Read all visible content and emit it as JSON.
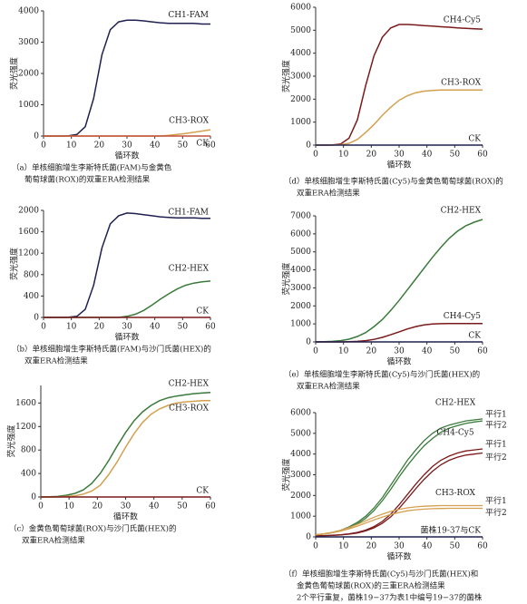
{
  "chart_data": [
    {
      "type": "line",
      "x_label": "循环数",
      "y_label": "荧光强度",
      "caption": [
        "（a）单核细胞增生李斯特氏菌(FAM)与金黄色",
        "葡萄球菌(ROX)的双重ERA检测结果"
      ],
      "xlim": [
        0,
        60
      ],
      "xticks": [
        0,
        10,
        20,
        30,
        40,
        50,
        60
      ],
      "ylim": [
        0,
        4000
      ],
      "yticks": [
        0,
        1000,
        2000,
        3000,
        4000
      ],
      "x": [
        0,
        3,
        6,
        9,
        12,
        15,
        18,
        21,
        24,
        27,
        30,
        33,
        36,
        39,
        42,
        45,
        48,
        51,
        54,
        57,
        60
      ],
      "series": [
        {
          "name": "CH1-FAM",
          "color": "#1f2050",
          "values": [
            0,
            0,
            0,
            10,
            50,
            300,
            1200,
            2600,
            3400,
            3650,
            3700,
            3700,
            3680,
            3650,
            3620,
            3600,
            3600,
            3600,
            3600,
            3580,
            3580
          ]
        },
        {
          "name": "CH3-ROX",
          "color": "#d4a050",
          "values": [
            0,
            0,
            0,
            0,
            0,
            0,
            0,
            0,
            0,
            0,
            0,
            0,
            0,
            0,
            0,
            20,
            50,
            80,
            120,
            160,
            200
          ]
        },
        {
          "name": "CK",
          "color": "#c0503a",
          "values": [
            0,
            0,
            0,
            0,
            0,
            0,
            0,
            0,
            0,
            0,
            0,
            0,
            0,
            0,
            0,
            0,
            0,
            0,
            0,
            0,
            0
          ]
        }
      ]
    },
    {
      "type": "line",
      "x_label": "循环数",
      "y_label": "荧光强度",
      "caption": [
        "（b）单核细胞增生李斯特氏菌(FAM)与沙门氏菌(HEX)的",
        "双重ERA检测结果"
      ],
      "xlim": [
        0,
        60
      ],
      "xticks": [
        0,
        10,
        20,
        30,
        40,
        50,
        60
      ],
      "ylim": [
        0,
        2000
      ],
      "yticks": [
        0,
        400,
        800,
        1200,
        1600,
        2000
      ],
      "x": [
        0,
        3,
        6,
        9,
        12,
        15,
        18,
        21,
        24,
        27,
        30,
        33,
        36,
        39,
        42,
        45,
        48,
        51,
        54,
        57,
        60
      ],
      "series": [
        {
          "name": "CH1-FAM",
          "color": "#1f2050",
          "values": [
            0,
            0,
            0,
            5,
            20,
            150,
            600,
            1300,
            1750,
            1900,
            1950,
            1940,
            1920,
            1900,
            1880,
            1870,
            1860,
            1860,
            1860,
            1850,
            1850
          ]
        },
        {
          "name": "CH2-HEX",
          "color": "#3a7a3a",
          "values": [
            0,
            0,
            0,
            0,
            0,
            0,
            0,
            0,
            0,
            0,
            20,
            60,
            130,
            230,
            340,
            440,
            530,
            600,
            640,
            665,
            680
          ]
        },
        {
          "name": "CK",
          "color": "#7a1a1a",
          "values": [
            0,
            0,
            0,
            0,
            0,
            0,
            0,
            0,
            0,
            0,
            0,
            0,
            0,
            0,
            0,
            0,
            0,
            0,
            0,
            0,
            0
          ]
        }
      ]
    },
    {
      "type": "line",
      "x_label": "循环数",
      "y_label": "荧光强度",
      "caption": [
        "（c）金黄色葡萄球菌(ROX)与沙门氏菌(HEX)的",
        "双重ERA检测结果"
      ],
      "xlim": [
        0,
        60
      ],
      "xticks": [
        0,
        10,
        20,
        30,
        40,
        50,
        60
      ],
      "ylim": [
        0,
        1900
      ],
      "yticks": [
        0,
        400,
        800,
        1200,
        1600
      ],
      "x": [
        0,
        3,
        6,
        9,
        12,
        15,
        18,
        21,
        24,
        27,
        30,
        33,
        36,
        39,
        42,
        45,
        48,
        51,
        54,
        57,
        60
      ],
      "series": [
        {
          "name": "CH2-HEX",
          "color": "#3a7a3a",
          "values": [
            0,
            5,
            10,
            30,
            60,
            120,
            230,
            400,
            620,
            870,
            1100,
            1300,
            1450,
            1560,
            1640,
            1690,
            1720,
            1740,
            1760,
            1770,
            1780
          ]
        },
        {
          "name": "CH3-ROX",
          "color": "#d4a050",
          "values": [
            0,
            0,
            0,
            10,
            20,
            50,
            100,
            200,
            380,
            600,
            850,
            1080,
            1270,
            1410,
            1500,
            1560,
            1600,
            1620,
            1630,
            1640,
            1640
          ]
        },
        {
          "name": "CK",
          "color": "#7a1a1a",
          "values": [
            0,
            0,
            0,
            0,
            0,
            0,
            0,
            0,
            0,
            0,
            0,
            0,
            0,
            0,
            0,
            0,
            0,
            0,
            0,
            0,
            0
          ]
        }
      ]
    },
    {
      "type": "line",
      "x_label": "循环数",
      "y_label": "荧光强度",
      "caption": [
        "（d）单核细胞增生李斯特氏菌(Cy5)与金黄色葡萄球菌(ROX)的",
        "双重ERA检测结果"
      ],
      "xlim": [
        0,
        60
      ],
      "xticks": [
        0,
        10,
        20,
        30,
        40,
        50,
        60
      ],
      "ylim": [
        0,
        6000
      ],
      "yticks": [
        0,
        1000,
        2000,
        3000,
        4000,
        5000,
        6000
      ],
      "x": [
        0,
        3,
        6,
        9,
        12,
        15,
        18,
        21,
        24,
        27,
        30,
        33,
        36,
        39,
        42,
        45,
        48,
        51,
        54,
        57,
        60
      ],
      "series": [
        {
          "name": "CH4-Cy5",
          "color": "#7a1a1a",
          "values": [
            0,
            0,
            5,
            50,
            300,
            1100,
            2600,
            3900,
            4700,
            5100,
            5250,
            5250,
            5230,
            5200,
            5180,
            5150,
            5130,
            5100,
            5080,
            5060,
            5050
          ]
        },
        {
          "name": "CH3-ROX",
          "color": "#d4a050",
          "values": [
            0,
            0,
            0,
            20,
            80,
            250,
            550,
            900,
            1300,
            1650,
            1950,
            2150,
            2280,
            2350,
            2380,
            2400,
            2400,
            2400,
            2400,
            2400,
            2400
          ]
        },
        {
          "name": "CK",
          "color": "#1f2050",
          "values": [
            0,
            0,
            0,
            0,
            0,
            0,
            0,
            0,
            0,
            0,
            0,
            0,
            0,
            0,
            0,
            0,
            0,
            0,
            0,
            0,
            0
          ]
        }
      ]
    },
    {
      "type": "line",
      "x_label": "循环数",
      "y_label": "荧光强度",
      "caption": [
        "（e）单核细胞增生李斯特氏菌(Cy5)与沙门氏菌(HEX)的",
        "双重ERA检测结果"
      ],
      "xlim": [
        0,
        60
      ],
      "xticks": [
        0,
        10,
        20,
        30,
        40,
        50,
        60
      ],
      "ylim": [
        0,
        7000
      ],
      "yticks": [
        0,
        1000,
        2000,
        3000,
        4000,
        5000,
        6000,
        7000
      ],
      "x": [
        0,
        3,
        6,
        9,
        12,
        15,
        18,
        21,
        24,
        27,
        30,
        33,
        36,
        39,
        42,
        45,
        48,
        51,
        54,
        57,
        60
      ],
      "series": [
        {
          "name": "CH2-HEX",
          "color": "#3a7a3a",
          "values": [
            0,
            10,
            30,
            70,
            150,
            300,
            520,
            850,
            1250,
            1750,
            2300,
            2900,
            3500,
            4100,
            4700,
            5250,
            5750,
            6150,
            6450,
            6650,
            6800
          ]
        },
        {
          "name": "CH4-Cy5",
          "color": "#7a1a1a",
          "values": [
            0,
            0,
            0,
            0,
            10,
            30,
            70,
            140,
            250,
            400,
            560,
            720,
            850,
            940,
            990,
            1010,
            1020,
            1020,
            1020,
            1020,
            1020
          ]
        },
        {
          "name": "CK",
          "color": "#1f2050",
          "values": [
            0,
            0,
            0,
            0,
            0,
            0,
            0,
            0,
            0,
            0,
            0,
            0,
            0,
            0,
            0,
            0,
            0,
            0,
            0,
            0,
            0
          ]
        }
      ]
    },
    {
      "type": "line",
      "x_label": "循环数",
      "y_label": "荧光强度",
      "caption": [
        "（f）单核细胞增生李斯特氏菌(Cy5)与沙门氏菌(HEX)和",
        "金黄色葡萄球菌(ROX)的三重ERA检测结果",
        "2个平行重复，菌株19−37为表1中编号19−37的菌株"
      ],
      "xlim": [
        0,
        60
      ],
      "xticks": [
        0,
        10,
        20,
        30,
        40,
        50,
        60
      ],
      "ylim": [
        0,
        6000
      ],
      "yticks": [
        0,
        1000,
        2000,
        3000,
        4000,
        5000,
        6000
      ],
      "x": [
        0,
        3,
        6,
        9,
        12,
        15,
        18,
        21,
        24,
        27,
        30,
        33,
        36,
        39,
        42,
        45,
        48,
        51,
        54,
        57,
        60
      ],
      "series": [
        {
          "name": "CH2-HEX",
          "color": "#3a7a3a",
          "replicates": [
            {
              "label": "平行1",
              "values": [
                100,
                150,
                220,
                320,
                480,
                700,
                1000,
                1400,
                1900,
                2500,
                3100,
                3700,
                4200,
                4650,
                5000,
                5250,
                5400,
                5500,
                5600,
                5650,
                5700
              ]
            },
            {
              "label": "平行2",
              "values": [
                100,
                140,
                200,
                290,
                430,
                630,
                900,
                1280,
                1750,
                2300,
                2900,
                3450,
                3950,
                4400,
                4750,
                5050,
                5250,
                5380,
                5480,
                5550,
                5600
              ]
            }
          ]
        },
        {
          "name": "CH4-Cy5",
          "color": "#7a1a1a",
          "replicates": [
            {
              "label": "平行1",
              "values": [
                50,
                60,
                80,
                100,
                150,
                220,
                330,
                500,
                750,
                1100,
                1550,
                2050,
                2550,
                3000,
                3400,
                3700,
                3900,
                4050,
                4150,
                4200,
                4250
              ]
            },
            {
              "label": "平行2",
              "values": [
                50,
                55,
                70,
                90,
                130,
                190,
                290,
                440,
                660,
                970,
                1380,
                1850,
                2330,
                2780,
                3170,
                3480,
                3700,
                3850,
                3950,
                4000,
                4050
              ]
            }
          ]
        },
        {
          "name": "CH3-ROX",
          "color": "#d4a050",
          "replicates": [
            {
              "label": "平行1",
              "values": [
                100,
                150,
                220,
                320,
                450,
                600,
                780,
                950,
                1100,
                1230,
                1330,
                1400,
                1450,
                1480,
                1500,
                1510,
                1510,
                1510,
                1510,
                1510,
                1510
              ]
            },
            {
              "label": "平行2",
              "values": [
                100,
                140,
                200,
                280,
                390,
                520,
                670,
                820,
                960,
                1080,
                1180,
                1260,
                1310,
                1340,
                1360,
                1370,
                1380,
                1380,
                1380,
                1380,
                1380
              ]
            }
          ]
        },
        {
          "name": "菌株19-37与CK",
          "color": "#1f2050",
          "values": [
            0,
            0,
            0,
            0,
            0,
            0,
            0,
            0,
            0,
            0,
            0,
            0,
            0,
            0,
            0,
            0,
            0,
            0,
            0,
            0,
            0
          ]
        }
      ]
    }
  ]
}
